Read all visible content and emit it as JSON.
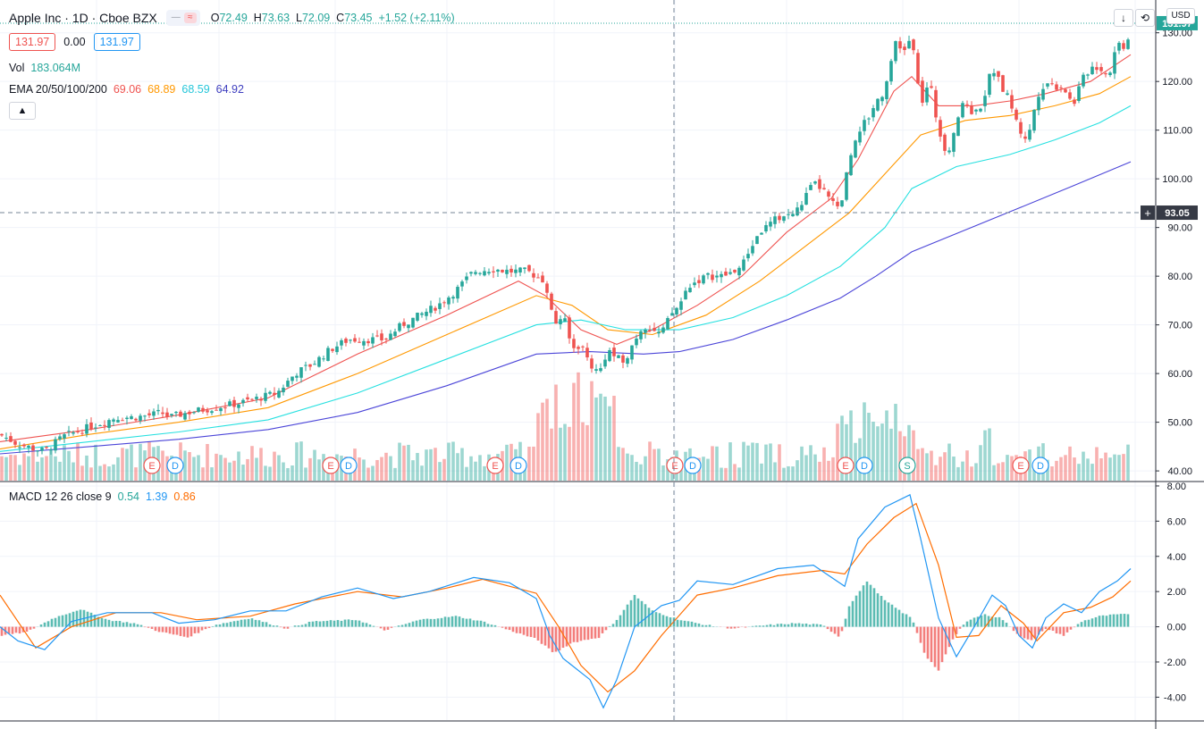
{
  "header": {
    "symbol": "Apple Inc · 1D · Cboe BZX",
    "ohlc": [
      {
        "k": "O",
        "v": "72.49"
      },
      {
        "k": "H",
        "v": "73.63"
      },
      {
        "k": "L",
        "v": "72.09"
      },
      {
        "k": "C",
        "v": "73.45"
      }
    ],
    "change": "+1.52 (+2.11%)",
    "bid": "131.97",
    "spread": "0.00",
    "ask": "131.97",
    "vol_label": "Vol",
    "vol_value": "183.064M",
    "ema_label": "EMA 20/50/100/200",
    "ema_values": [
      "69.06",
      "68.89",
      "68.59",
      "64.92"
    ],
    "collapse_icon": "chevron-up-icon",
    "macd_label": "MACD 12 26 close 9",
    "macd_values": [
      "0.54",
      "1.39",
      "0.86"
    ],
    "currency": "USD"
  },
  "colors": {
    "up": "#26a69a",
    "down": "#ef5350",
    "ema20": "#ef5350",
    "ema50": "#ff9800",
    "ema100": "#26e0e0",
    "ema200": "#4b45d8",
    "macd": "#2196f3",
    "signal": "#ff6d00",
    "crosshair_label": "#363a45",
    "last_price_label": "#26a69a"
  },
  "chart_data": {
    "type": "candlestick",
    "price_axis_ticks": [
      "130.00",
      "120.00",
      "110.00",
      "100.00",
      "90.00",
      "80.00",
      "70.00",
      "60.00",
      "50.00",
      "40.00"
    ],
    "price_axis_values": [
      130,
      120,
      110,
      100,
      90,
      80,
      70,
      60,
      50,
      40
    ],
    "ylim": [
      38,
      136
    ],
    "last_price": 131.97,
    "last_price_label": "131.97",
    "crosshair_price": 93.05,
    "crosshair_label": "93.05",
    "close_path": [
      [
        0,
        47.5
      ],
      [
        20,
        45.5
      ],
      [
        50,
        44
      ],
      [
        70,
        47
      ],
      [
        100,
        49
      ],
      [
        130,
        51
      ],
      [
        150,
        51
      ],
      [
        170,
        51.5
      ],
      [
        180,
        52
      ],
      [
        190,
        51
      ],
      [
        210,
        52
      ],
      [
        240,
        53
      ],
      [
        270,
        54
      ],
      [
        290,
        55
      ],
      [
        310,
        56
      ],
      [
        330,
        60
      ],
      [
        350,
        62
      ],
      [
        370,
        65
      ],
      [
        390,
        67
      ],
      [
        410,
        67
      ],
      [
        430,
        67
      ],
      [
        450,
        70
      ],
      [
        470,
        72
      ],
      [
        490,
        74
      ],
      [
        510,
        77
      ],
      [
        530,
        81
      ],
      [
        550,
        81.5
      ],
      [
        570,
        81
      ],
      [
        590,
        81
      ],
      [
        600,
        80
      ],
      [
        610,
        79
      ],
      [
        620,
        70
      ],
      [
        630,
        72
      ],
      [
        640,
        65
      ],
      [
        650,
        66
      ],
      [
        660,
        62
      ],
      [
        670,
        60
      ],
      [
        680,
        65
      ],
      [
        690,
        63
      ],
      [
        700,
        63
      ],
      [
        710,
        67
      ],
      [
        720,
        70
      ],
      [
        740,
        68
      ],
      [
        750,
        72
      ],
      [
        760,
        74
      ],
      [
        770,
        78
      ],
      [
        790,
        80
      ],
      [
        810,
        80
      ],
      [
        830,
        82
      ],
      [
        840,
        86
      ],
      [
        850,
        89
      ],
      [
        870,
        92
      ],
      [
        890,
        93
      ],
      [
        900,
        96
      ],
      [
        910,
        99
      ],
      [
        920,
        98
      ],
      [
        930,
        95
      ],
      [
        940,
        94
      ],
      [
        950,
        104
      ],
      [
        960,
        110
      ],
      [
        970,
        112
      ],
      [
        980,
        116
      ],
      [
        990,
        118
      ],
      [
        1000,
        128
      ],
      [
        1010,
        126
      ],
      [
        1020,
        129
      ],
      [
        1030,
        115
      ],
      [
        1040,
        120
      ],
      [
        1050,
        110
      ],
      [
        1060,
        105
      ],
      [
        1070,
        112
      ],
      [
        1080,
        116
      ],
      [
        1090,
        113
      ],
      [
        1100,
        116
      ],
      [
        1110,
        123
      ],
      [
        1120,
        119
      ],
      [
        1130,
        116
      ],
      [
        1140,
        110
      ],
      [
        1150,
        108
      ],
      [
        1160,
        117
      ],
      [
        1170,
        120
      ],
      [
        1180,
        119
      ],
      [
        1190,
        119
      ],
      [
        1200,
        115
      ],
      [
        1210,
        120
      ],
      [
        1220,
        123
      ],
      [
        1230,
        123
      ],
      [
        1240,
        121
      ],
      [
        1250,
        128
      ],
      [
        1260,
        127
      ],
      [
        1265,
        131.97
      ]
    ],
    "ema_series": [
      {
        "name": "EMA 20",
        "points": [
          [
            0,
            46
          ],
          [
            100,
            48.5
          ],
          [
            200,
            51.5
          ],
          [
            300,
            55
          ],
          [
            400,
            64
          ],
          [
            500,
            72
          ],
          [
            580,
            79
          ],
          [
            610,
            76
          ],
          [
            650,
            69
          ],
          [
            690,
            66
          ],
          [
            730,
            69
          ],
          [
            780,
            74
          ],
          [
            830,
            80
          ],
          [
            880,
            89
          ],
          [
            930,
            96
          ],
          [
            960,
            104
          ],
          [
            1000,
            118
          ],
          [
            1020,
            121
          ],
          [
            1050,
            115
          ],
          [
            1090,
            115
          ],
          [
            1130,
            116
          ],
          [
            1170,
            117.5
          ],
          [
            1220,
            120
          ],
          [
            1265,
            125.5
          ]
        ]
      },
      {
        "name": "EMA 50",
        "points": [
          [
            0,
            44.5
          ],
          [
            100,
            47.5
          ],
          [
            200,
            50
          ],
          [
            300,
            53
          ],
          [
            400,
            60
          ],
          [
            500,
            68
          ],
          [
            600,
            76
          ],
          [
            640,
            74
          ],
          [
            680,
            69
          ],
          [
            730,
            68
          ],
          [
            790,
            72
          ],
          [
            850,
            79
          ],
          [
            900,
            86
          ],
          [
            950,
            93
          ],
          [
            1000,
            103
          ],
          [
            1030,
            109
          ],
          [
            1080,
            112
          ],
          [
            1130,
            113
          ],
          [
            1180,
            115
          ],
          [
            1230,
            117.5
          ],
          [
            1265,
            121
          ]
        ]
      },
      {
        "name": "EMA 100",
        "points": [
          [
            0,
            44
          ],
          [
            100,
            46
          ],
          [
            200,
            48
          ],
          [
            300,
            50.5
          ],
          [
            400,
            56
          ],
          [
            500,
            63
          ],
          [
            600,
            70
          ],
          [
            650,
            71
          ],
          [
            700,
            69
          ],
          [
            760,
            69
          ],
          [
            820,
            71.5
          ],
          [
            880,
            76
          ],
          [
            940,
            82
          ],
          [
            990,
            90
          ],
          [
            1020,
            98
          ],
          [
            1070,
            102.5
          ],
          [
            1130,
            105
          ],
          [
            1180,
            108
          ],
          [
            1230,
            111.5
          ],
          [
            1265,
            115
          ]
        ]
      },
      {
        "name": "EMA 200",
        "points": [
          [
            0,
            43.5
          ],
          [
            100,
            45
          ],
          [
            200,
            46.5
          ],
          [
            300,
            48.5
          ],
          [
            400,
            52
          ],
          [
            500,
            57.5
          ],
          [
            600,
            64
          ],
          [
            660,
            64.5
          ],
          [
            720,
            64
          ],
          [
            760,
            64.5
          ],
          [
            820,
            67
          ],
          [
            880,
            71
          ],
          [
            940,
            75.5
          ],
          [
            980,
            80
          ],
          [
            1020,
            85
          ],
          [
            1080,
            89.5
          ],
          [
            1140,
            94
          ],
          [
            1200,
            98.5
          ],
          [
            1265,
            103.5
          ]
        ]
      }
    ],
    "events": [
      {
        "x": 170,
        "label": "E"
      },
      {
        "x": 196,
        "label": "D"
      },
      {
        "x": 370,
        "label": "E"
      },
      {
        "x": 390,
        "label": "D"
      },
      {
        "x": 554,
        "label": "E"
      },
      {
        "x": 580,
        "label": "D"
      },
      {
        "x": 755,
        "label": "E"
      },
      {
        "x": 775,
        "label": "D"
      },
      {
        "x": 946,
        "label": "E"
      },
      {
        "x": 967,
        "label": "D"
      },
      {
        "x": 1015,
        "label": "S"
      },
      {
        "x": 1142,
        "label": "E"
      },
      {
        "x": 1164,
        "label": "D"
      }
    ],
    "macd": {
      "axis_ticks": [
        "8.00",
        "6.00",
        "4.00",
        "2.00",
        "0.00",
        "-2.00",
        "-4.00"
      ],
      "axis_values": [
        8,
        6,
        4,
        2,
        0,
        -2,
        -4
      ],
      "ylim": [
        -5.3,
        8.2
      ],
      "macd_line": [
        [
          0,
          0
        ],
        [
          20,
          -0.8
        ],
        [
          50,
          -1.3
        ],
        [
          80,
          0.3
        ],
        [
          120,
          0.8
        ],
        [
          170,
          0.8
        ],
        [
          200,
          0.2
        ],
        [
          240,
          0.4
        ],
        [
          280,
          0.9
        ],
        [
          320,
          0.9
        ],
        [
          360,
          1.7
        ],
        [
          400,
          2.2
        ],
        [
          440,
          1.6
        ],
        [
          480,
          2.0
        ],
        [
          530,
          2.8
        ],
        [
          570,
          2.5
        ],
        [
          600,
          1.6
        ],
        [
          615,
          -0.5
        ],
        [
          630,
          -1.8
        ],
        [
          660,
          -3.0
        ],
        [
          675,
          -4.6
        ],
        [
          690,
          -3.0
        ],
        [
          710,
          0
        ],
        [
          740,
          1.2
        ],
        [
          760,
          1.5
        ],
        [
          780,
          2.6
        ],
        [
          820,
          2.4
        ],
        [
          870,
          3.3
        ],
        [
          910,
          3.5
        ],
        [
          945,
          2.3
        ],
        [
          960,
          5.0
        ],
        [
          990,
          6.8
        ],
        [
          1018,
          7.5
        ],
        [
          1030,
          5.0
        ],
        [
          1050,
          0.5
        ],
        [
          1070,
          -1.7
        ],
        [
          1090,
          0
        ],
        [
          1110,
          1.8
        ],
        [
          1125,
          1.2
        ],
        [
          1140,
          -0.5
        ],
        [
          1155,
          -1.2
        ],
        [
          1170,
          0.5
        ],
        [
          1190,
          1.3
        ],
        [
          1210,
          0.8
        ],
        [
          1230,
          2.0
        ],
        [
          1250,
          2.6
        ],
        [
          1265,
          3.3
        ]
      ],
      "signal_line": [
        [
          0,
          1.8
        ],
        [
          40,
          -1.2
        ],
        [
          80,
          0
        ],
        [
          130,
          0.8
        ],
        [
          180,
          0.8
        ],
        [
          220,
          0.4
        ],
        [
          280,
          0.6
        ],
        [
          330,
          1.3
        ],
        [
          400,
          2.0
        ],
        [
          450,
          1.7
        ],
        [
          500,
          2.2
        ],
        [
          540,
          2.7
        ],
        [
          600,
          1.9
        ],
        [
          625,
          0.0
        ],
        [
          650,
          -2.2
        ],
        [
          680,
          -3.7
        ],
        [
          710,
          -2.5
        ],
        [
          740,
          -0.5
        ],
        [
          780,
          1.8
        ],
        [
          820,
          2.2
        ],
        [
          870,
          2.9
        ],
        [
          920,
          3.2
        ],
        [
          945,
          3.0
        ],
        [
          970,
          4.7
        ],
        [
          1000,
          6.2
        ],
        [
          1025,
          7.0
        ],
        [
          1050,
          3.5
        ],
        [
          1070,
          -0.6
        ],
        [
          1095,
          -0.5
        ],
        [
          1120,
          1.2
        ],
        [
          1145,
          0.2
        ],
        [
          1160,
          -0.8
        ],
        [
          1190,
          0.8
        ],
        [
          1220,
          1.1
        ],
        [
          1245,
          1.7
        ],
        [
          1265,
          2.6
        ]
      ],
      "hist_left": [
        [
          0,
          -0.5
        ],
        [
          30,
          -0.3
        ],
        [
          60,
          0.5
        ],
        [
          90,
          1.0
        ],
        [
          120,
          0.4
        ],
        [
          150,
          0.2
        ],
        [
          180,
          -0.3
        ],
        [
          210,
          -0.6
        ],
        [
          240,
          0.1
        ],
        [
          280,
          0.5
        ],
        [
          320,
          -0.1
        ],
        [
          350,
          0.3
        ],
        [
          400,
          0.4
        ],
        [
          430,
          -0.2
        ],
        [
          470,
          0.4
        ],
        [
          510,
          0.6
        ],
        [
          540,
          0.3
        ],
        [
          570,
          -0.2
        ],
        [
          600,
          -0.7
        ],
        [
          620,
          -1.5
        ],
        [
          640,
          -0.9
        ],
        [
          670,
          -0.6
        ],
        [
          690,
          0.4
        ],
        [
          710,
          1.8
        ],
        [
          730,
          0.9
        ],
        [
          760,
          0.4
        ],
        [
          790,
          0.1
        ],
        [
          820,
          -0.1
        ],
        [
          860,
          0.1
        ],
        [
          890,
          0.2
        ],
        [
          920,
          0.1
        ],
        [
          940,
          -0.6
        ],
        [
          950,
          1.2
        ],
        [
          970,
          2.6
        ],
        [
          990,
          1.5
        ],
        [
          1010,
          0.8
        ],
        [
          1020,
          0.5
        ],
        [
          1035,
          -1.6
        ],
        [
          1050,
          -2.5
        ],
        [
          1065,
          -0.8
        ],
        [
          1080,
          0.3
        ],
        [
          1100,
          0.7
        ],
        [
          1120,
          0.5
        ],
        [
          1140,
          -0.5
        ],
        [
          1155,
          -0.8
        ],
        [
          1170,
          -0.1
        ],
        [
          1190,
          -0.5
        ],
        [
          1210,
          0.3
        ],
        [
          1230,
          0.6
        ],
        [
          1250,
          0.7
        ],
        [
          1265,
          0.7
        ]
      ]
    }
  }
}
